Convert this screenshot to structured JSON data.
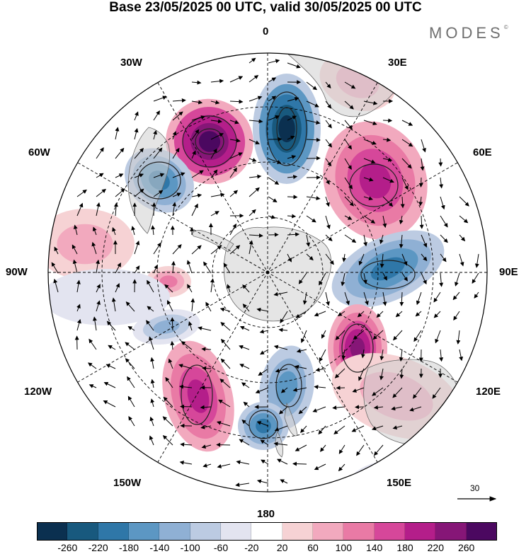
{
  "title": "Base 23/05/2025 00 UTC, valid 30/05/2025 00 UTC",
  "brand": "MODES",
  "brand_mark": "©",
  "longitude_labels": {
    "lon_0": "0",
    "lon_30e": "30E",
    "lon_60e": "60E",
    "lon_90e": "90E",
    "lon_120e": "120E",
    "lon_150e": "150E",
    "lon_180": "180",
    "lon_150w": "150W",
    "lon_120w": "120W",
    "lon_90w": "90W",
    "lon_60w": "60W",
    "lon_30w": "30W"
  },
  "reference_vector_label": "30",
  "colorbar": {
    "ticks": [
      "-260",
      "-220",
      "-180",
      "-140",
      "-100",
      "-60",
      "-20",
      "20",
      "60",
      "100",
      "140",
      "180",
      "220",
      "260"
    ],
    "colors": [
      "#0b3050",
      "#18597e",
      "#2f77a8",
      "#5c97c3",
      "#8fb0d4",
      "#bccbe2",
      "#e3e4f0",
      "#ffffff",
      "#f6d2d4",
      "#f2a9be",
      "#e97aa5",
      "#d6479a",
      "#b41e8a",
      "#861677",
      "#4b0860"
    ]
  },
  "map": {
    "projection": "south polar stereographic",
    "anomaly_centers": [
      {
        "lon": "~0",
        "sign": "negative",
        "strength": "strong"
      },
      {
        "lon": "~30W",
        "sign": "positive",
        "strength": "strong"
      },
      {
        "lon": "~55W",
        "sign": "negative",
        "strength": "moderate"
      },
      {
        "lon": "~45E",
        "sign": "positive",
        "strength": "moderate"
      },
      {
        "lon": "~90E",
        "sign": "negative",
        "strength": "moderate"
      },
      {
        "lon": "~130E",
        "sign": "positive",
        "strength": "moderate"
      },
      {
        "lon": "~175E",
        "sign": "negative",
        "strength": "moderate"
      },
      {
        "lon": "~150W",
        "sign": "positive",
        "strength": "moderate"
      },
      {
        "lon": "~115W",
        "sign": "negative",
        "strength": "weak"
      }
    ]
  }
}
